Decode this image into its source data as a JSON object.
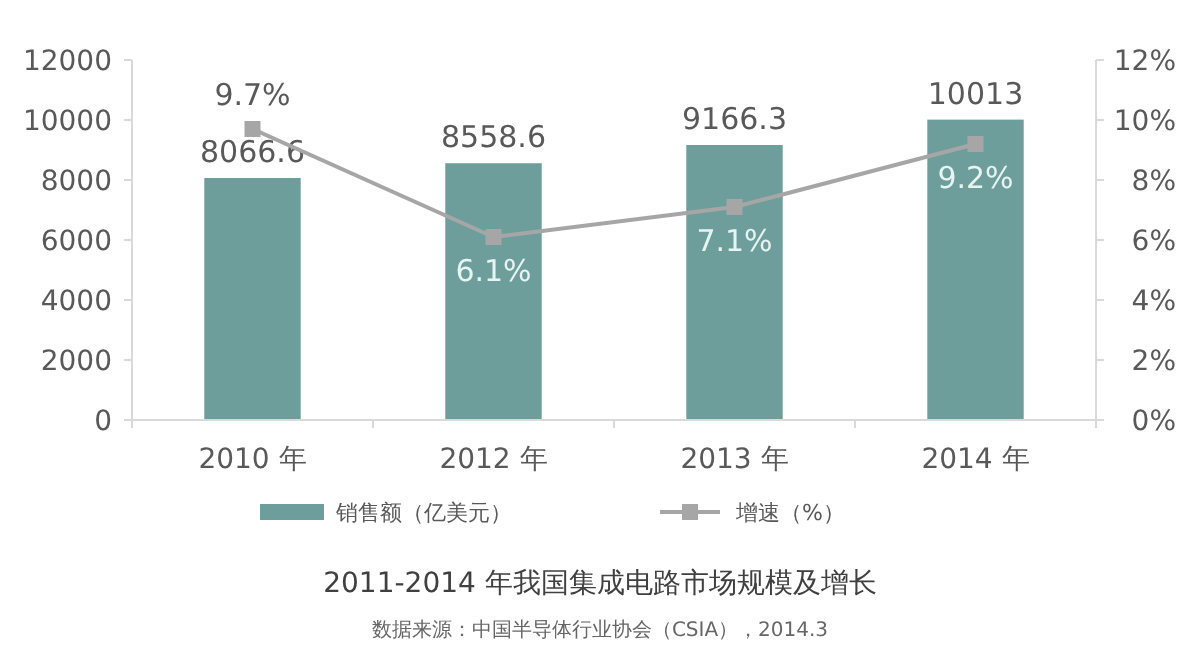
{
  "chart_data": {
    "type": "bar",
    "title": "2011-2014 年我国集成电路市场规模及增长",
    "annotations": [
      "数据来源：中国半导体行业协会（CSIA），2014.3"
    ],
    "categories": [
      "2010 年",
      "2012 年",
      "2013 年",
      "2014 年"
    ],
    "series": [
      {
        "name": "销售额（亿美元）",
        "color": "#6e9e9b",
        "values": [
          8066.6,
          8558.6,
          9166.3,
          10013
        ]
      },
      {
        "name": "增速（%）",
        "type": "line",
        "axis": "y2",
        "color": "#a6a6a6",
        "marker": "square",
        "values": [
          9.7,
          6.1,
          7.1,
          9.2
        ],
        "value_labels": [
          "9.7%",
          "6.1%",
          "7.1%",
          "9.2%"
        ]
      }
    ],
    "ylim": [
      0,
      12000
    ],
    "yticks": [
      0,
      2000,
      4000,
      6000,
      8000,
      10000,
      12000
    ],
    "y2lim": [
      0,
      12
    ],
    "y2ticks": [
      {
        "value": 0,
        "label": "0%"
      },
      {
        "value": 2,
        "label": "2%"
      },
      {
        "value": 4,
        "label": "4%"
      },
      {
        "value": 6,
        "label": "6%"
      },
      {
        "value": 8,
        "label": "8%"
      },
      {
        "value": 10,
        "label": "10%"
      },
      {
        "value": 12,
        "label": "12%"
      }
    ],
    "data_labels": true,
    "legend": "bottom",
    "grid": false
  }
}
